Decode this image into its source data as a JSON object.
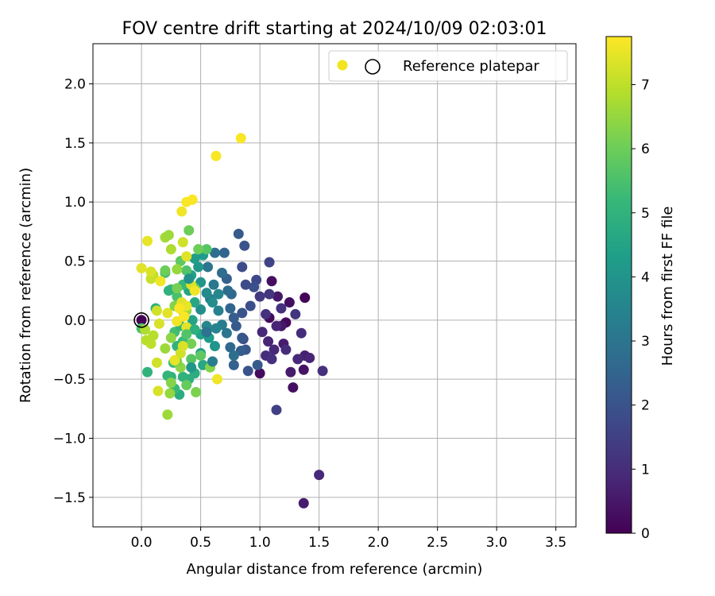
{
  "chart_data": {
    "type": "scatter",
    "title": "FOV centre drift starting at 2024/10/09 02:03:01",
    "xlabel": "Angular distance from reference (arcmin)",
    "ylabel": "Rotation from reference (arcmin)",
    "xlim": [
      -0.41,
      3.67
    ],
    "ylim": [
      -1.75,
      2.34
    ],
    "xticks": [
      "0.0",
      "0.5",
      "1.0",
      "1.5",
      "2.0",
      "2.5",
      "3.0",
      "3.5"
    ],
    "yticks": [
      "−1.5",
      "−1.0",
      "−0.5",
      "0.0",
      "0.5",
      "1.0",
      "1.5",
      "2.0"
    ],
    "xtick_values": [
      0,
      0.5,
      1.0,
      1.5,
      2.0,
      2.5,
      3.0,
      3.5
    ],
    "ytick_values": [
      -1.5,
      -1.0,
      -0.5,
      0.0,
      0.5,
      1.0,
      1.5,
      2.0
    ],
    "grid": true,
    "legend_position": "top-right",
    "legend": [
      {
        "label": "Reference platepar",
        "marker": "open-circle"
      }
    ],
    "legend_dot_color": "#f1e51d",
    "reference_point": {
      "x": 0.0,
      "y": 0.0
    },
    "colorbar": {
      "label": "Hours from first FF file",
      "range": [
        0,
        7.75
      ],
      "ticks": [
        "0",
        "1",
        "2",
        "3",
        "4",
        "5",
        "6",
        "7"
      ],
      "tick_values": [
        0,
        1,
        2,
        3,
        4,
        5,
        6,
        7
      ],
      "colormap": "viridis",
      "stops": [
        "#440154",
        "#482878",
        "#3e4989",
        "#31688e",
        "#26828e",
        "#1f9e89",
        "#35b779",
        "#6ece58",
        "#b5de2b",
        "#fde725"
      ]
    },
    "points": [
      {
        "x": 0.0,
        "y": 0.0,
        "h": 0.0
      },
      {
        "x": 1.38,
        "y": 0.19,
        "h": 0.1
      },
      {
        "x": 1.08,
        "y": 0.02,
        "h": 0.2
      },
      {
        "x": 1.25,
        "y": 0.15,
        "h": 0.3
      },
      {
        "x": 1.22,
        "y": -0.02,
        "h": 0.2
      },
      {
        "x": 1.1,
        "y": 0.33,
        "h": 0.3
      },
      {
        "x": 1.0,
        "y": -0.45,
        "h": 0.2
      },
      {
        "x": 1.28,
        "y": -0.57,
        "h": 0.3
      },
      {
        "x": 1.37,
        "y": -0.42,
        "h": 0.4
      },
      {
        "x": 1.15,
        "y": 0.2,
        "h": 0.5
      },
      {
        "x": 1.18,
        "y": -0.05,
        "h": 0.5
      },
      {
        "x": 1.2,
        "y": -0.2,
        "h": 0.6
      },
      {
        "x": 1.26,
        "y": -0.44,
        "h": 0.6
      },
      {
        "x": 1.37,
        "y": -1.55,
        "h": 0.6
      },
      {
        "x": 1.5,
        "y": -1.31,
        "h": 0.9
      },
      {
        "x": 1.38,
        "y": -0.3,
        "h": 0.7
      },
      {
        "x": 1.42,
        "y": -0.32,
        "h": 0.8
      },
      {
        "x": 1.53,
        "y": -0.43,
        "h": 1.1
      },
      {
        "x": 1.35,
        "y": -0.11,
        "h": 1.0
      },
      {
        "x": 1.32,
        "y": -0.33,
        "h": 0.9
      },
      {
        "x": 1.14,
        "y": -0.05,
        "h": 0.8
      },
      {
        "x": 1.12,
        "y": -0.25,
        "h": 0.9
      },
      {
        "x": 1.07,
        "y": -0.18,
        "h": 0.8
      },
      {
        "x": 1.02,
        "y": -0.1,
        "h": 0.9
      },
      {
        "x": 1.05,
        "y": -0.3,
        "h": 1.0
      },
      {
        "x": 1.1,
        "y": -0.33,
        "h": 1.1
      },
      {
        "x": 1.22,
        "y": -0.25,
        "h": 1.0
      },
      {
        "x": 1.18,
        "y": 0.1,
        "h": 1.1
      },
      {
        "x": 1.3,
        "y": 0.05,
        "h": 1.2
      },
      {
        "x": 1.08,
        "y": 0.22,
        "h": 1.2
      },
      {
        "x": 1.05,
        "y": 0.05,
        "h": 1.1
      },
      {
        "x": 1.0,
        "y": 0.2,
        "h": 1.3
      },
      {
        "x": 1.14,
        "y": -0.76,
        "h": 1.5
      },
      {
        "x": 1.08,
        "y": 0.49,
        "h": 1.6
      },
      {
        "x": 0.97,
        "y": 0.34,
        "h": 1.7
      },
      {
        "x": 0.95,
        "y": 0.28,
        "h": 1.9
      },
      {
        "x": 0.92,
        "y": 0.12,
        "h": 1.9
      },
      {
        "x": 0.88,
        "y": 0.3,
        "h": 1.8
      },
      {
        "x": 0.85,
        "y": 0.45,
        "h": 1.8
      },
      {
        "x": 0.87,
        "y": 0.63,
        "h": 2.0
      },
      {
        "x": 0.82,
        "y": 0.73,
        "h": 2.2
      },
      {
        "x": 0.85,
        "y": 0.06,
        "h": 2.0
      },
      {
        "x": 0.86,
        "y": -0.16,
        "h": 1.9
      },
      {
        "x": 0.88,
        "y": -0.25,
        "h": 2.1
      },
      {
        "x": 0.84,
        "y": -0.26,
        "h": 2.3
      },
      {
        "x": 0.9,
        "y": -0.43,
        "h": 2.0
      },
      {
        "x": 0.98,
        "y": -0.38,
        "h": 2.2
      },
      {
        "x": 0.78,
        "y": -0.38,
        "h": 2.4
      },
      {
        "x": 0.75,
        "y": -0.23,
        "h": 2.6
      },
      {
        "x": 0.8,
        "y": -0.05,
        "h": 2.2
      },
      {
        "x": 0.78,
        "y": 0.02,
        "h": 2.3
      },
      {
        "x": 0.75,
        "y": 0.1,
        "h": 2.5
      },
      {
        "x": 0.76,
        "y": 0.22,
        "h": 2.6
      },
      {
        "x": 0.72,
        "y": 0.35,
        "h": 2.4
      },
      {
        "x": 0.68,
        "y": 0.4,
        "h": 2.7
      },
      {
        "x": 0.7,
        "y": 0.57,
        "h": 2.5
      },
      {
        "x": 0.62,
        "y": 0.57,
        "h": 2.8
      },
      {
        "x": 0.56,
        "y": 0.45,
        "h": 3.0
      },
      {
        "x": 0.61,
        "y": 0.3,
        "h": 3.1
      },
      {
        "x": 0.58,
        "y": 0.18,
        "h": 3.3
      },
      {
        "x": 0.65,
        "y": 0.08,
        "h": 3.4
      },
      {
        "x": 0.68,
        "y": -0.04,
        "h": 3.2
      },
      {
        "x": 0.63,
        "y": -0.07,
        "h": 3.5
      },
      {
        "x": 0.72,
        "y": -0.11,
        "h": 3.0
      },
      {
        "x": 0.78,
        "y": -0.3,
        "h": 2.8
      },
      {
        "x": 0.55,
        "y": -0.05,
        "h": 3.6
      },
      {
        "x": 0.5,
        "y": 0.09,
        "h": 3.8
      },
      {
        "x": 0.55,
        "y": 0.23,
        "h": 3.7
      },
      {
        "x": 0.5,
        "y": 0.32,
        "h": 4.0
      },
      {
        "x": 0.48,
        "y": 0.45,
        "h": 4.1
      },
      {
        "x": 0.52,
        "y": 0.55,
        "h": 4.2
      },
      {
        "x": 0.45,
        "y": 0.52,
        "h": 4.3
      },
      {
        "x": 0.42,
        "y": 0.38,
        "h": 4.4
      },
      {
        "x": 0.4,
        "y": 0.25,
        "h": 4.5
      },
      {
        "x": 0.45,
        "y": 0.15,
        "h": 4.6
      },
      {
        "x": 0.43,
        "y": 0.0,
        "h": 4.5
      },
      {
        "x": 0.5,
        "y": -0.12,
        "h": 4.4
      },
      {
        "x": 0.57,
        "y": -0.15,
        "h": 4.2
      },
      {
        "x": 0.62,
        "y": -0.22,
        "h": 4.0
      },
      {
        "x": 0.5,
        "y": -0.28,
        "h": 4.3
      },
      {
        "x": 0.52,
        "y": -0.38,
        "h": 4.6
      },
      {
        "x": 0.45,
        "y": -0.45,
        "h": 4.8
      },
      {
        "x": 0.4,
        "y": -0.5,
        "h": 4.9
      },
      {
        "x": 0.35,
        "y": -0.48,
        "h": 5.0
      },
      {
        "x": 0.32,
        "y": -0.63,
        "h": 4.8
      },
      {
        "x": 0.28,
        "y": -0.58,
        "h": 5.2
      },
      {
        "x": 0.25,
        "y": -0.48,
        "h": 5.0
      },
      {
        "x": 0.22,
        "y": -0.47,
        "h": 5.1
      },
      {
        "x": 0.27,
        "y": -0.36,
        "h": 5.3
      },
      {
        "x": 0.3,
        "y": -0.22,
        "h": 5.0
      },
      {
        "x": 0.35,
        "y": -0.18,
        "h": 5.2
      },
      {
        "x": 0.28,
        "y": -0.1,
        "h": 5.4
      },
      {
        "x": 0.33,
        "y": -0.05,
        "h": 5.1
      },
      {
        "x": 0.36,
        "y": 0.05,
        "h": 5.3
      },
      {
        "x": 0.3,
        "y": 0.2,
        "h": 5.5
      },
      {
        "x": 0.25,
        "y": 0.26,
        "h": 5.4
      },
      {
        "x": 0.35,
        "y": 0.3,
        "h": 5.2
      },
      {
        "x": 0.38,
        "y": 0.42,
        "h": 5.6
      },
      {
        "x": 0.33,
        "y": 0.5,
        "h": 5.8
      },
      {
        "x": 0.4,
        "y": 0.76,
        "h": 6.0
      },
      {
        "x": 0.05,
        "y": -0.44,
        "h": 5.0
      },
      {
        "x": 0.0,
        "y": -0.07,
        "h": 5.5
      },
      {
        "x": 0.12,
        "y": 0.1,
        "h": 5.0
      },
      {
        "x": 0.2,
        "y": 0.4,
        "h": 5.5
      },
      {
        "x": 0.23,
        "y": 0.25,
        "h": 5.0
      },
      {
        "x": 0.55,
        "y": 0.6,
        "h": 5.7
      },
      {
        "x": 0.48,
        "y": 0.6,
        "h": 6.0
      },
      {
        "x": 0.45,
        "y": 0.27,
        "h": 5.9
      },
      {
        "x": 0.42,
        "y": -0.33,
        "h": 5.7
      },
      {
        "x": 0.38,
        "y": -0.55,
        "h": 5.9
      },
      {
        "x": 0.46,
        "y": -0.61,
        "h": 6.2
      },
      {
        "x": 0.5,
        "y": -0.3,
        "h": 5.8
      },
      {
        "x": 0.58,
        "y": -0.4,
        "h": 6.3
      },
      {
        "x": 0.42,
        "y": -0.2,
        "h": 6.1
      },
      {
        "x": 0.33,
        "y": -0.4,
        "h": 6.4
      },
      {
        "x": 0.3,
        "y": -0.35,
        "h": 6.2
      },
      {
        "x": 0.25,
        "y": -0.53,
        "h": 6.3
      },
      {
        "x": 0.22,
        "y": -0.8,
        "h": 6.6
      },
      {
        "x": 0.24,
        "y": -0.62,
        "h": 6.5
      },
      {
        "x": 0.2,
        "y": -0.24,
        "h": 6.6
      },
      {
        "x": 0.25,
        "y": -0.15,
        "h": 6.4
      },
      {
        "x": 0.28,
        "y": 0.12,
        "h": 6.3
      },
      {
        "x": 0.38,
        "y": 0.08,
        "h": 6.5
      },
      {
        "x": 0.3,
        "y": 0.43,
        "h": 6.5
      },
      {
        "x": 0.25,
        "y": 0.6,
        "h": 6.8
      },
      {
        "x": 0.2,
        "y": 0.7,
        "h": 6.7
      },
      {
        "x": 0.23,
        "y": 0.72,
        "h": 6.6
      },
      {
        "x": 0.03,
        "y": -0.08,
        "h": 6.8
      },
      {
        "x": 0.04,
        "y": -0.17,
        "h": 6.9
      },
      {
        "x": 0.08,
        "y": -0.2,
        "h": 7.0
      },
      {
        "x": 0.1,
        "y": -0.13,
        "h": 6.9
      },
      {
        "x": 0.1,
        "y": 0.38,
        "h": 7.0
      },
      {
        "x": 0.08,
        "y": 0.35,
        "h": 7.1
      },
      {
        "x": 0.13,
        "y": -0.36,
        "h": 7.2
      },
      {
        "x": 0.14,
        "y": -0.6,
        "h": 7.3
      },
      {
        "x": 0.15,
        "y": -0.03,
        "h": 7.3
      },
      {
        "x": 0.13,
        "y": 0.08,
        "h": 7.2
      },
      {
        "x": 0.0,
        "y": 0.44,
        "h": 7.4
      },
      {
        "x": 0.05,
        "y": 0.67,
        "h": 7.5
      },
      {
        "x": 0.08,
        "y": 0.41,
        "h": 7.3
      },
      {
        "x": 0.16,
        "y": 0.33,
        "h": 7.6
      },
      {
        "x": 0.22,
        "y": 0.06,
        "h": 7.4
      },
      {
        "x": 0.28,
        "y": -0.34,
        "h": 7.5
      },
      {
        "x": 0.33,
        "y": -0.28,
        "h": 7.2
      },
      {
        "x": 0.35,
        "y": -0.22,
        "h": 7.3
      },
      {
        "x": 0.38,
        "y": -0.06,
        "h": 7.4
      },
      {
        "x": 0.3,
        "y": -0.01,
        "h": 7.6
      },
      {
        "x": 0.34,
        "y": 0.15,
        "h": 7.4
      },
      {
        "x": 0.38,
        "y": 0.12,
        "h": 7.5
      },
      {
        "x": 0.42,
        "y": 0.3,
        "h": 7.3
      },
      {
        "x": 0.45,
        "y": 0.25,
        "h": 7.6
      },
      {
        "x": 0.38,
        "y": 0.54,
        "h": 7.4
      },
      {
        "x": 0.35,
        "y": 0.66,
        "h": 7.2
      },
      {
        "x": 0.34,
        "y": 0.92,
        "h": 7.6
      },
      {
        "x": 0.38,
        "y": 1.0,
        "h": 7.7
      },
      {
        "x": 0.43,
        "y": 1.02,
        "h": 7.7
      },
      {
        "x": 0.63,
        "y": 1.39,
        "h": 7.7
      },
      {
        "x": 0.84,
        "y": 1.54,
        "h": 7.7
      },
      {
        "x": 0.64,
        "y": -0.5,
        "h": 7.6
      },
      {
        "x": 0.32,
        "y": 0.1,
        "h": 7.7
      },
      {
        "x": 0.36,
        "y": 0.03,
        "h": 7.7
      },
      {
        "x": 0.2,
        "y": 0.42,
        "h": 6.0
      },
      {
        "x": 0.3,
        "y": 0.27,
        "h": 6.1
      },
      {
        "x": 0.4,
        "y": 0.35,
        "h": 3.9
      },
      {
        "x": 0.65,
        "y": 0.22,
        "h": 3.6
      },
      {
        "x": 0.55,
        "y": -0.1,
        "h": 2.9
      },
      {
        "x": 0.73,
        "y": 0.25,
        "h": 2.7
      },
      {
        "x": 0.6,
        "y": 0.15,
        "h": 3.8
      },
      {
        "x": 0.45,
        "y": -0.08,
        "h": 4.9
      },
      {
        "x": 0.38,
        "y": -0.12,
        "h": 5.6
      },
      {
        "x": 0.42,
        "y": -0.4,
        "h": 4.1
      },
      {
        "x": 0.85,
        "y": -0.15,
        "h": 2.1
      },
      {
        "x": 0.6,
        "y": -0.35,
        "h": 3.3
      }
    ]
  }
}
